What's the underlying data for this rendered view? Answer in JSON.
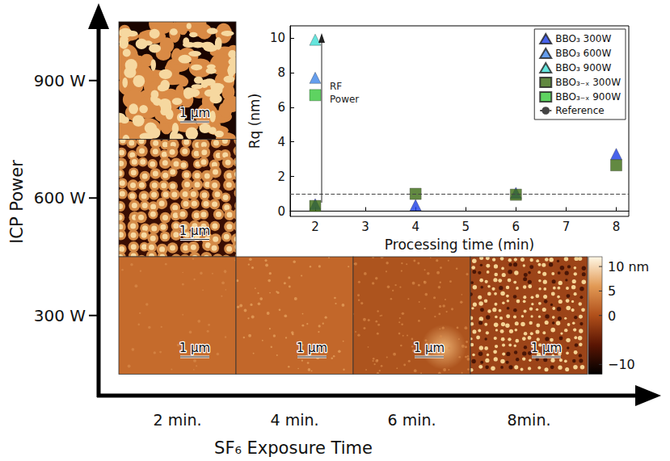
{
  "figure": {
    "y_axis_title": "ICP Power",
    "rows": [
      "900 W",
      "600 W",
      "300 W"
    ],
    "x_axis_title": "SF₆ Exposure Time",
    "columns": [
      "2 min.",
      "4 min.",
      "6 min.",
      "8min."
    ],
    "panels": [
      {
        "row": "900 W",
        "column": "2 min.",
        "scale_bar": "1 µm"
      },
      {
        "row": "600 W",
        "column": "2 min.",
        "scale_bar": "1 µm"
      },
      {
        "row": "300 W",
        "column": "2 min.",
        "scale_bar": "1 µm"
      },
      {
        "row": "300 W",
        "column": "4 min.",
        "scale_bar": "1 µm"
      },
      {
        "row": "300 W",
        "column": "6 min.",
        "scale_bar": "1 µm"
      },
      {
        "row": "300 W",
        "column": "8min.",
        "scale_bar": "1 µm"
      }
    ],
    "colorbar": {
      "range": [
        -12,
        12
      ],
      "ticks": [
        {
          "value": 10,
          "label": "10 nm"
        },
        5,
        0,
        {
          "value": -10,
          "label": "−10"
        }
      ]
    }
  },
  "chart_data": {
    "type": "scatter",
    "x_label": "Processing time (min)",
    "y_label": "Rq (nm)",
    "xlim": [
      1.5,
      8.25
    ],
    "xticks": [
      2,
      3,
      4,
      5,
      6,
      7,
      8
    ],
    "ylim": [
      -0.3,
      10.7
    ],
    "yticks": [
      0,
      2,
      4,
      6,
      8,
      10
    ],
    "grid": false,
    "legend": "upper right",
    "annotations": [
      "RF Power"
    ],
    "series": [
      {
        "name": "BBO₃ 300W",
        "color": "#1a3ce6",
        "marker": "triangle",
        "x": [
          2,
          4,
          6,
          8
        ],
        "values": [
          0.4,
          0.35,
          1.05,
          3.3
        ]
      },
      {
        "name": "BBO₃ 600W",
        "color": "#3f86e8",
        "marker": "triangle",
        "x": [
          2
        ],
        "values": [
          7.7
        ]
      },
      {
        "name": "BBO₃ 900W",
        "color": "#3fe0d6",
        "marker": "triangle",
        "x": [
          2
        ],
        "values": [
          9.9
        ]
      },
      {
        "name": "BBO₃₋ₓ 300W",
        "color": "#3b6b12",
        "marker": "square",
        "x": [
          2,
          4,
          6,
          8
        ],
        "values": [
          0.3,
          1.0,
          0.95,
          2.65
        ]
      },
      {
        "name": "BBO₃₋ₓ 900W",
        "color": "#36c83a",
        "marker": "square",
        "x": [
          2
        ],
        "values": [
          6.7
        ]
      }
    ],
    "reference": {
      "name": "Reference",
      "value": 1,
      "line_style": "dashed"
    }
  }
}
